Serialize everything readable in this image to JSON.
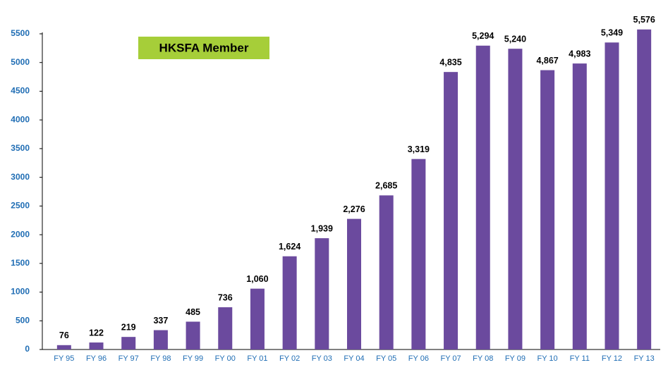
{
  "chart_data": {
    "type": "bar",
    "categories": [
      "FY 95",
      "FY 96",
      "FY 97",
      "FY 98",
      "FY 99",
      "FY 00",
      "FY 01",
      "FY 02",
      "FY 03",
      "FY 04",
      "FY 05",
      "FY 06",
      "FY 07",
      "FY 08",
      "FY 09",
      "FY 10",
      "FY 11",
      "FY 12",
      "FY 13"
    ],
    "series": [
      {
        "name": "HKSFA Member",
        "color": "#6b4a9e",
        "values": [
          76,
          122,
          219,
          337,
          485,
          736,
          1060,
          1624,
          1939,
          2276,
          2685,
          3319,
          4835,
          5294,
          5240,
          4867,
          4983,
          5349,
          5576
        ],
        "value_labels": [
          "76",
          "122",
          "219",
          "337",
          "485",
          "736",
          "1,060",
          "1,624",
          "1,939",
          "2,276",
          "2,685",
          "3,319",
          "4,835",
          "5,294",
          "5,240",
          "4,867",
          "4,983",
          "5,349",
          "5,576"
        ]
      }
    ],
    "ylim": [
      0,
      5500
    ],
    "yticks": [
      0,
      500,
      1000,
      1500,
      2000,
      2500,
      3000,
      3500,
      4000,
      4500,
      5000,
      5500
    ],
    "legend": {
      "position": "top-left",
      "color": "#a6ce39"
    }
  }
}
